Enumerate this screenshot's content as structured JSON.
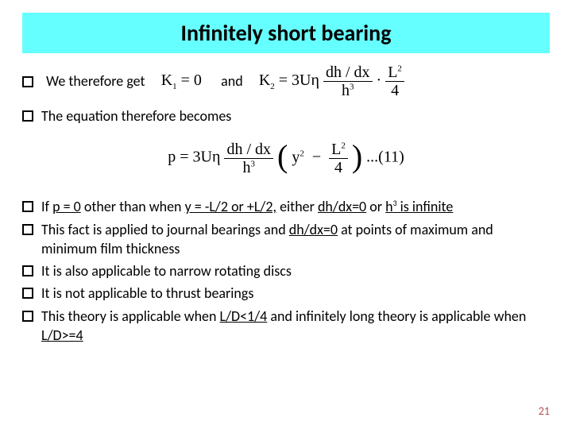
{
  "title": "Infinitely short bearing",
  "colors": {
    "title_bg": "#66ffff",
    "title_text": "#000000",
    "body_text": "#000000",
    "slide_num": "#b84f4f",
    "underline_accent": "#7a1f3f"
  },
  "fonts": {
    "title_size": 28,
    "body_size": 18,
    "eq_family": "Times New Roman",
    "eq_size": 20
  },
  "line1": {
    "pre": "We therefore get",
    "and": "and"
  },
  "eq1a_lhs": "K",
  "eq1a_sub": "1",
  "eq1a_eq": "= 0",
  "eq1b_lhs": "K",
  "eq1b_sub": "2",
  "eq1b_eq": "= 3Uη",
  "eq1b_frac1_num": "dh / dx",
  "eq1b_frac1_den": "h",
  "eq1b_frac1_den_sup": "3",
  "eq1b_dot": "·",
  "eq1b_frac2_num": "L",
  "eq1b_frac2_num_sup": "2",
  "eq1b_frac2_den": "4",
  "line2": "The equation therefore becomes",
  "eq2_lhs": "p = 3Uη",
  "eq2_frac1_num": "dh / dx",
  "eq2_frac1_den": "h",
  "eq2_frac1_den_sup": "3",
  "eq2_y2": "y",
  "eq2_y2_sup": "2",
  "eq2_minus": "−",
  "eq2_frac2_num": "L",
  "eq2_frac2_num_sup": "2",
  "eq2_frac2_den": "4",
  "eq2_tail": "...(11)",
  "bullets": [
    {
      "pre": "If ",
      "u1": "p = 0",
      "mid1": " other than when ",
      "u2": "y = -L/2 or +L/2,",
      "mid2": " either ",
      "u3": "dh/dx=0",
      "mid3": " or ",
      "u4": "h",
      "u4_sup": "3",
      "u4b": " is infinite"
    },
    {
      "pre": "This fact is applied to journal bearings and ",
      "u1": "dh/dx=0",
      "post": " at points of maximum and minimum film thickness"
    },
    {
      "plain": "It is also applicable to narrow rotating discs"
    },
    {
      "plain": "It is not applicable to thrust bearings"
    },
    {
      "pre": "This theory is applicable when ",
      "u1": "L/D<1/4",
      "mid1": " and infinitely long theory is applicable when ",
      "u2": "L/D>=4"
    }
  ],
  "slide_number": "21"
}
